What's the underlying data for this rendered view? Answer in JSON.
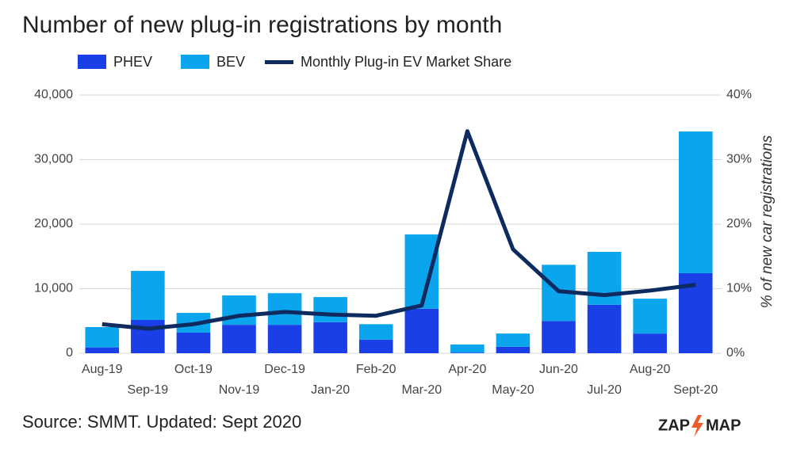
{
  "chart_data": {
    "type": "bar",
    "stacked": true,
    "title": "Number of new plug-in registrations by month",
    "y2_label": "% of new car registrations",
    "categories": [
      "Aug-19",
      "Sep-19",
      "Oct-19",
      "Nov-19",
      "Dec-19",
      "Jan-20",
      "Feb-20",
      "Mar-20",
      "Apr-20",
      "May-20",
      "Jun-20",
      "Jul-20",
      "Aug-20",
      "Sept-20"
    ],
    "series": [
      {
        "name": "PHEV",
        "color": "#1a3fe6",
        "type": "bar",
        "values": [
          900,
          5150,
          3200,
          4400,
          4400,
          4800,
          2100,
          6900,
          100,
          1000,
          5000,
          7500,
          3050,
          12400
        ]
      },
      {
        "name": "BEV",
        "color": "#0ba5ee",
        "type": "bar",
        "values": [
          3150,
          7600,
          3050,
          4550,
          4900,
          3900,
          2400,
          11500,
          1250,
          2050,
          8700,
          8200,
          5400,
          21950
        ]
      },
      {
        "name": "Monthly Plug-in EV Market Share",
        "color": "#0d2b5e",
        "type": "line",
        "axis": "y2",
        "values": [
          4.5,
          3.8,
          4.5,
          5.8,
          6.4,
          6.0,
          5.8,
          7.4,
          34.4,
          16.1,
          9.6,
          9.0,
          9.7,
          10.6
        ]
      }
    ],
    "ylim": [
      0,
      40000
    ],
    "yticks": [
      0,
      {
        "value": 10000,
        "label": "10,000"
      },
      {
        "value": 20000,
        "label": "20,000"
      },
      {
        "value": 30000,
        "label": "30,000"
      },
      {
        "value": 40000,
        "label": "40,000"
      }
    ],
    "y2lim": [
      0,
      40
    ],
    "y2ticks": [
      {
        "value": 0,
        "label": "0%"
      },
      {
        "value": 10,
        "label": "10%"
      },
      {
        "value": 20,
        "label": "20%"
      },
      {
        "value": 30,
        "label": "30%"
      },
      {
        "value": 40,
        "label": "40%"
      }
    ],
    "grid": true
  },
  "source": "Source: SMMT. Updated: Sept 2020",
  "logo": {
    "left": "ZAP",
    "right": "MAP"
  }
}
